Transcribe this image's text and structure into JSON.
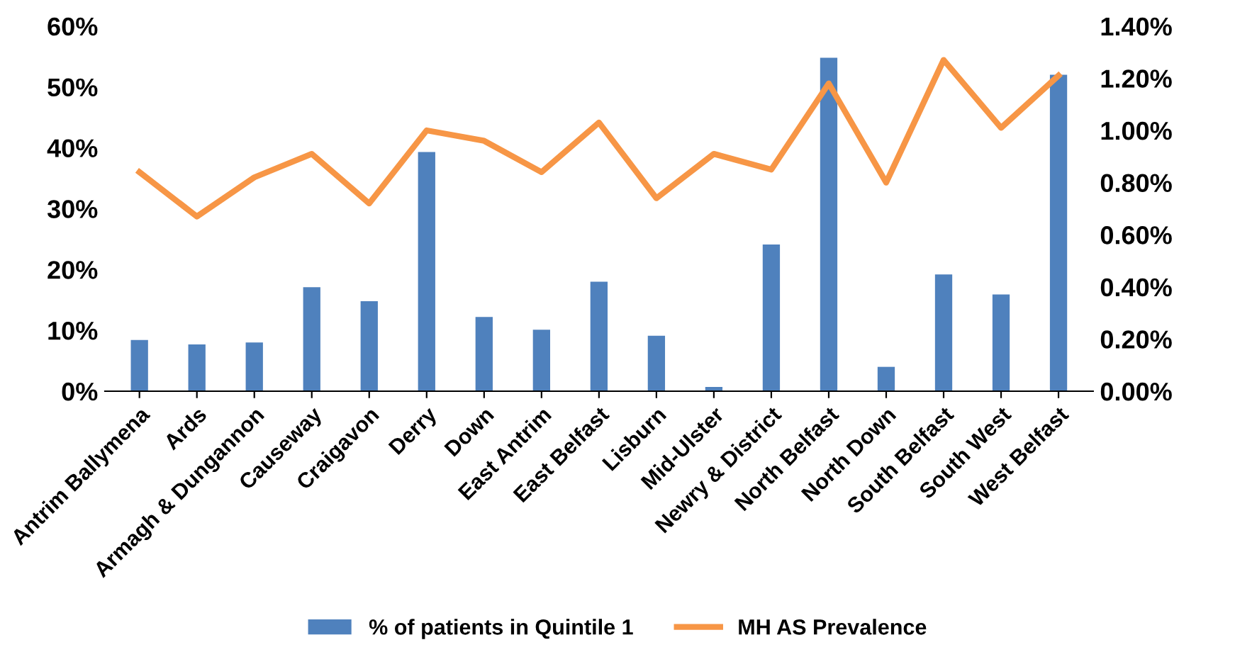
{
  "chart_data": {
    "type": "bar",
    "categories": [
      "Antrim Ballymena",
      "Ards",
      "Armagh & Dungannon",
      "Causeway",
      "Craigavon",
      "Derry",
      "Down",
      "East Antrim",
      "East Belfast",
      "Lisburn",
      "Mid-Ulster",
      "Newry & District",
      "North Belfast",
      "North Down",
      "South Belfast",
      "South West",
      "West Belfast"
    ],
    "series": [
      {
        "name": "% of patients in Quintile 1",
        "color": "#4f81bd",
        "values": [
          8.4,
          7.7,
          8.0,
          17.1,
          14.8,
          39.3,
          12.2,
          10.1,
          18.0,
          9.1,
          0.7,
          24.1,
          54.8,
          4.0,
          19.2,
          15.9,
          52.0
        ]
      },
      {
        "name": "MH AS Prevalence",
        "type": "line",
        "axis": "y2",
        "color": "#f79646",
        "values": [
          0.84,
          0.67,
          0.82,
          0.91,
          0.72,
          1.0,
          0.96,
          0.84,
          1.03,
          0.74,
          0.91,
          0.85,
          1.18,
          0.8,
          1.27,
          1.01,
          1.21
        ]
      }
    ],
    "ylim": [
      0,
      60
    ],
    "yticks": [
      {
        "value": 0,
        "label": "0%"
      },
      {
        "value": 10,
        "label": "10%"
      },
      {
        "value": 20,
        "label": "20%"
      },
      {
        "value": 30,
        "label": "30%"
      },
      {
        "value": 40,
        "label": "40%"
      },
      {
        "value": 50,
        "label": "50%"
      },
      {
        "value": 60,
        "label": "60%"
      }
    ],
    "y2lim": [
      0,
      1.4
    ],
    "y2ticks": [
      {
        "value": 0,
        "label": "0.00%"
      },
      {
        "value": 0.2,
        "label": "0.20%"
      },
      {
        "value": 0.4,
        "label": "0.40%"
      },
      {
        "value": 0.6,
        "label": "0.60%"
      },
      {
        "value": 0.8,
        "label": "0.80%"
      },
      {
        "value": 1.0,
        "label": "1.00%"
      },
      {
        "value": 1.2,
        "label": "1.20%"
      },
      {
        "value": 1.4,
        "label": "1.40%"
      }
    ],
    "grid": false,
    "legend": "bottom",
    "marker": "none",
    "line_style": "solid"
  }
}
